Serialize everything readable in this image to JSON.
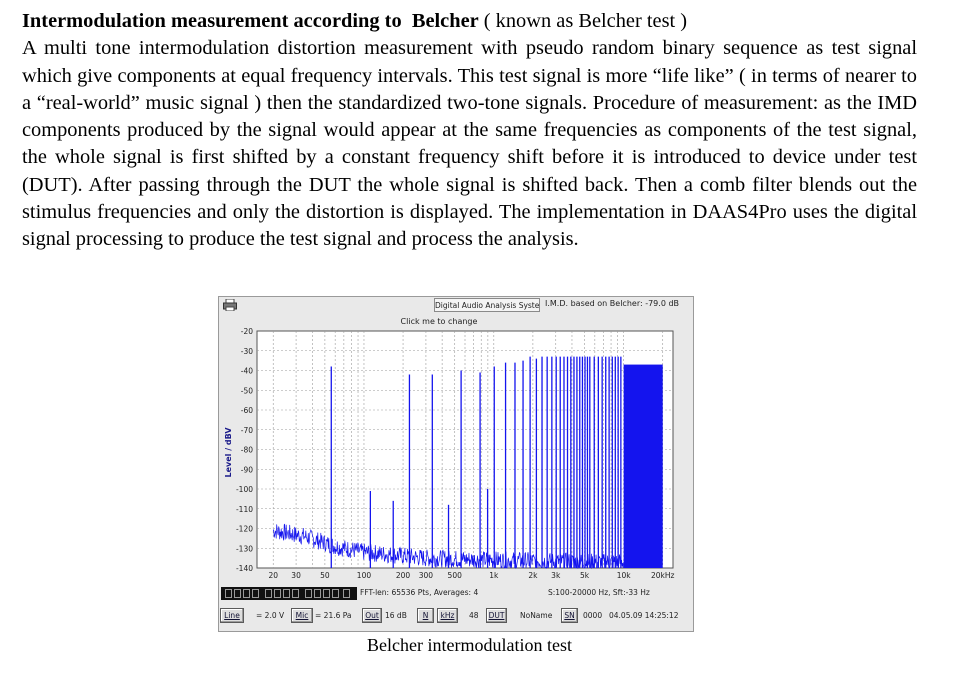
{
  "document": {
    "heading_bold_1": "Intermodulation measurement according to",
    "heading_bold_2": "Belcher",
    "heading_rest": "( known as Belcher test )",
    "paragraph": "A multi tone intermodulation distortion measurement with pseudo random binary sequence as test signal which give components at equal frequency intervals. This test signal is more “life like” ( in terms of nearer to a “real-world” music signal ) then the standardized two-tone signals. Procedure of measurement: as the IMD components produced by the signal would appear at the same frequencies as components of the test signal, the whole signal is first shifted by a constant frequency shift before it is introduced to device under test (DUT). After passing through the DUT the whole signal is shifted back. Then a comb filter blends out the stimulus frequencies and only the distortion is displayed. The implementation in DAAS4Pro uses the digital signal processing to produce the test signal and process the analysis.",
    "caption": "Belcher intermodulation test"
  },
  "app": {
    "system_button": "Digital Audio Analysis System",
    "imd_readout": "I.M.D. based on Belcher: -79.0 dB",
    "click_to_change": "Click me to change",
    "fft_info": "FFT-len: 65536 Pts, Averages: 4",
    "range_info": "S:100-20000 Hz, Sft:-33 Hz",
    "line_button": "Line",
    "line_value": "= 2.0 V",
    "mic_button": "Mic",
    "mic_value": "= 21.6 Pa",
    "out_button": "Out",
    "out_value": "16 dB",
    "n_button": "N",
    "khz_button": "kHz",
    "khz_value": "48",
    "dut_button": "DUT",
    "noname_label": "NoName",
    "sn_button": "SN",
    "serial_value": "0000",
    "datetime": "04.05.09 14:25:12",
    "trace_color": "#1414ee",
    "icons": [
      "printer-icon",
      "level-meter-display"
    ]
  },
  "chart_data": {
    "type": "line",
    "title": "",
    "xlabel": "",
    "ylabel": "Level / dBV",
    "x_scale": "log",
    "xlim": [
      15,
      24000
    ],
    "ylim": [
      -140,
      -20
    ],
    "grid": true,
    "legend": "none",
    "xtick_labels": [
      {
        "x": 20,
        "label": "20"
      },
      {
        "x": 30,
        "label": "30"
      },
      {
        "x": 50,
        "label": "50"
      },
      {
        "x": 100,
        "label": "100"
      },
      {
        "x": 200,
        "label": "200"
      },
      {
        "x": 300,
        "label": "300"
      },
      {
        "x": 500,
        "label": "500"
      },
      {
        "x": 1000,
        "label": "1k"
      },
      {
        "x": 2000,
        "label": "2k"
      },
      {
        "x": 3000,
        "label": "3k"
      },
      {
        "x": 5000,
        "label": "5k"
      },
      {
        "x": 10000,
        "label": "10k"
      },
      {
        "x": 20000,
        "label": "20kHz"
      }
    ],
    "ytick_labels": [
      "-20",
      "-30",
      "-40",
      "-50",
      "-60",
      "-70",
      "-80",
      "-90",
      "-100",
      "-110",
      "-120",
      "-130",
      "-140"
    ],
    "series": [
      {
        "color": "#1414ee",
        "noise_floor": [
          [
            20,
            -121
          ],
          [
            35,
            -124
          ],
          [
            60,
            -129
          ],
          [
            100,
            -132
          ],
          [
            300,
            -135
          ],
          [
            1000,
            -136
          ],
          [
            5000,
            -137
          ],
          [
            20000,
            -137
          ]
        ],
        "tones": [
          {
            "x": 56,
            "y": -38
          },
          {
            "x": 112,
            "y": -101
          },
          {
            "x": 168,
            "y": -106
          },
          {
            "x": 224,
            "y": -42
          },
          {
            "x": 336,
            "y": -42
          },
          {
            "x": 448,
            "y": -108
          },
          {
            "x": 560,
            "y": -40
          },
          {
            "x": 784,
            "y": -41
          },
          {
            "x": 896,
            "y": -100
          },
          {
            "x": 1008,
            "y": -38
          },
          {
            "x": 1232,
            "y": -36
          },
          {
            "x": 1456,
            "y": -36
          },
          {
            "x": 1680,
            "y": -35
          },
          {
            "x": 1904,
            "y": -33
          },
          {
            "x": 2128,
            "y": -34
          },
          {
            "x": 2352,
            "y": -33
          },
          {
            "x": 2576,
            "y": -33
          },
          {
            "x": 2800,
            "y": -33
          },
          {
            "x": 3024,
            "y": -33
          },
          {
            "x": 3248,
            "y": -33
          },
          {
            "x": 3472,
            "y": -33
          },
          {
            "x": 3696,
            "y": -33
          },
          {
            "x": 3920,
            "y": -33
          },
          {
            "x": 4144,
            "y": -33
          },
          {
            "x": 4368,
            "y": -33
          },
          {
            "x": 4592,
            "y": -33
          },
          {
            "x": 4816,
            "y": -33
          },
          {
            "x": 5040,
            "y": -33
          },
          {
            "x": 5264,
            "y": -33
          },
          {
            "x": 5488,
            "y": -33
          },
          {
            "x": 5936,
            "y": -33
          },
          {
            "x": 6384,
            "y": -33
          },
          {
            "x": 6832,
            "y": -33
          },
          {
            "x": 7280,
            "y": -33
          },
          {
            "x": 7728,
            "y": -33
          },
          {
            "x": 8176,
            "y": -33
          },
          {
            "x": 8624,
            "y": -33
          },
          {
            "x": 9072,
            "y": -33
          },
          {
            "x": 9520,
            "y": -33
          }
        ],
        "dense_band": {
          "x_start": 10000,
          "x_end": 20000,
          "level": -37
        }
      }
    ]
  }
}
